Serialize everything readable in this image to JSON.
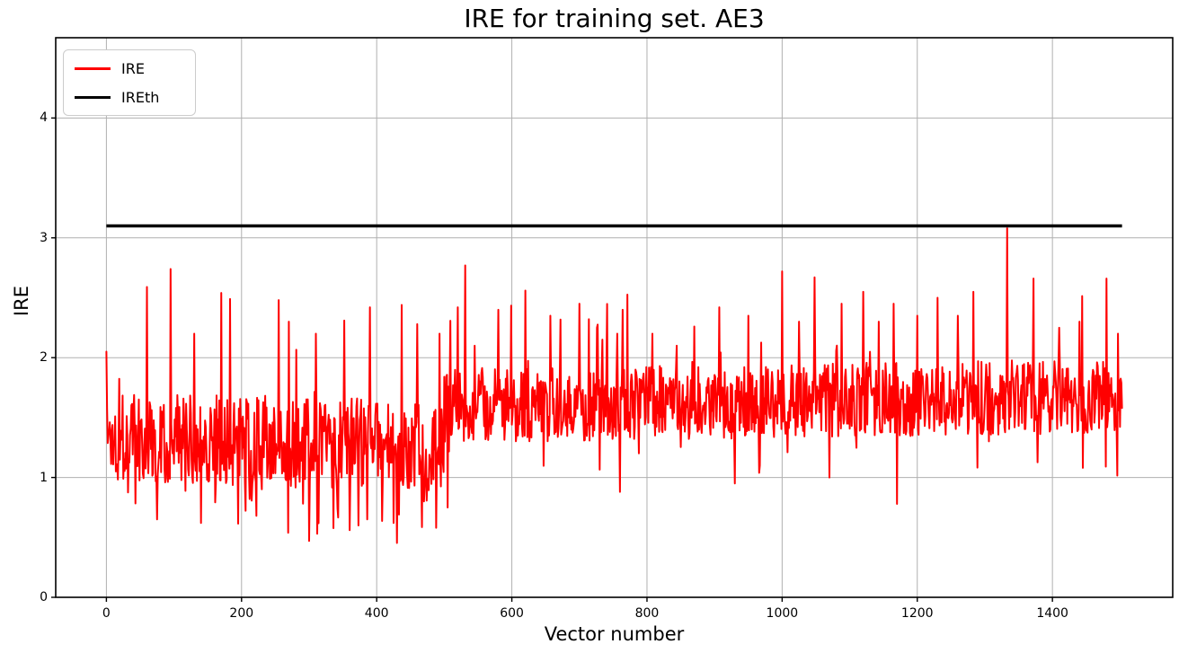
{
  "figure": {
    "background": "#ffffff"
  },
  "chart_data": {
    "type": "line",
    "title": "IRE for training set. AE3",
    "xlabel": "Vector number",
    "ylabel": "IRE",
    "xlim": [
      -75,
      1578
    ],
    "ylim": [
      0,
      4.67
    ],
    "xticks": [
      0,
      200,
      400,
      600,
      800,
      1000,
      1200,
      1400
    ],
    "yticks": [
      0,
      1,
      2,
      3,
      4
    ],
    "grid": true,
    "grid_color": "#b0b0b0",
    "axis_color": "#000000",
    "legend": {
      "position": "upper-left",
      "entries": [
        {
          "label": "IRE",
          "color": "#ff0000"
        },
        {
          "label": "IREth",
          "color": "#000000"
        }
      ]
    },
    "series": [
      {
        "name": "IRE",
        "color": "#ff0000",
        "line_width": 2,
        "x_start": 0,
        "x_end": 1503,
        "description": "noisy per-vector reconstruction error; band ~0.9-1.8 (mean ~1.3) for vectors 0-500 with dips to ~0.47, band ~1.3-2.0 (mean ~1.65) for vectors 500-1503; isolated spikes to ~2.4-2.77; max ~3.08 at vector 1333",
        "generator": {
          "seed": 1337,
          "n": 1504,
          "clamp_min": 0.45,
          "clamp_max": 2.72,
          "segments": [
            {
              "from": 0,
              "to": 499,
              "base": 1.34,
              "base_end": 1.26,
              "noise": 0.38,
              "spike_prob": 0.012,
              "spike_extra": 0.75,
              "dip_prob": 0.045,
              "dip_extra": 0.45
            },
            {
              "from": 500,
              "to": 1503,
              "base": 1.6,
              "base_end": 1.68,
              "noise": 0.31,
              "spike_prob": 0.018,
              "spike_extra": 0.72,
              "dip_prob": 0.02,
              "dip_extra": 0.38
            }
          ],
          "spikes": [
            [
              0,
              2.05
            ],
            [
              60,
              2.59
            ],
            [
              95,
              2.74
            ],
            [
              130,
              2.2
            ],
            [
              170,
              2.54
            ],
            [
              183,
              2.49
            ],
            [
              255,
              2.48
            ],
            [
              270,
              2.3
            ],
            [
              310,
              2.2
            ],
            [
              352,
              2.31
            ],
            [
              390,
              2.42
            ],
            [
              437,
              2.44
            ],
            [
              460,
              2.28
            ],
            [
              493,
              2.2
            ],
            [
              520,
              2.42
            ],
            [
              531,
              2.77
            ],
            [
              545,
              2.1
            ],
            [
              580,
              2.4
            ],
            [
              620,
              2.56
            ],
            [
              657,
              2.35
            ],
            [
              700,
              2.45
            ],
            [
              726,
              2.25
            ],
            [
              756,
              2.2
            ],
            [
              808,
              2.2
            ],
            [
              844,
              2.1
            ],
            [
              870,
              2.26
            ],
            [
              907,
              2.42
            ],
            [
              950,
              2.35
            ],
            [
              1000,
              2.72
            ],
            [
              1025,
              2.3
            ],
            [
              1048,
              2.67
            ],
            [
              1088,
              2.45
            ],
            [
              1120,
              2.55
            ],
            [
              1143,
              2.3
            ],
            [
              1165,
              2.45
            ],
            [
              1200,
              2.35
            ],
            [
              1230,
              2.5
            ],
            [
              1260,
              2.35
            ],
            [
              1283,
              2.55
            ],
            [
              1333,
              3.08
            ],
            [
              1372,
              2.66
            ],
            [
              1410,
              2.25
            ],
            [
              1440,
              2.3
            ],
            [
              1480,
              2.66
            ],
            [
              1497,
              2.2
            ]
          ],
          "dips": [
            [
              75,
              0.65
            ],
            [
              140,
              0.62
            ],
            [
              222,
              0.68
            ],
            [
              300,
              0.47
            ],
            [
              312,
              0.53
            ],
            [
              360,
              0.56
            ],
            [
              373,
              0.6
            ],
            [
              425,
              0.62
            ],
            [
              488,
              0.58
            ],
            [
              505,
              0.75
            ],
            [
              760,
              0.88
            ],
            [
              930,
              0.95
            ],
            [
              1070,
              1.0
            ],
            [
              1170,
              0.78
            ],
            [
              1445,
              1.08
            ]
          ]
        }
      },
      {
        "name": "IREth",
        "type": "threshold",
        "color": "#000000",
        "line_width": 3.5,
        "value": 3.1,
        "x_start": 0,
        "x_end": 1503
      }
    ]
  }
}
